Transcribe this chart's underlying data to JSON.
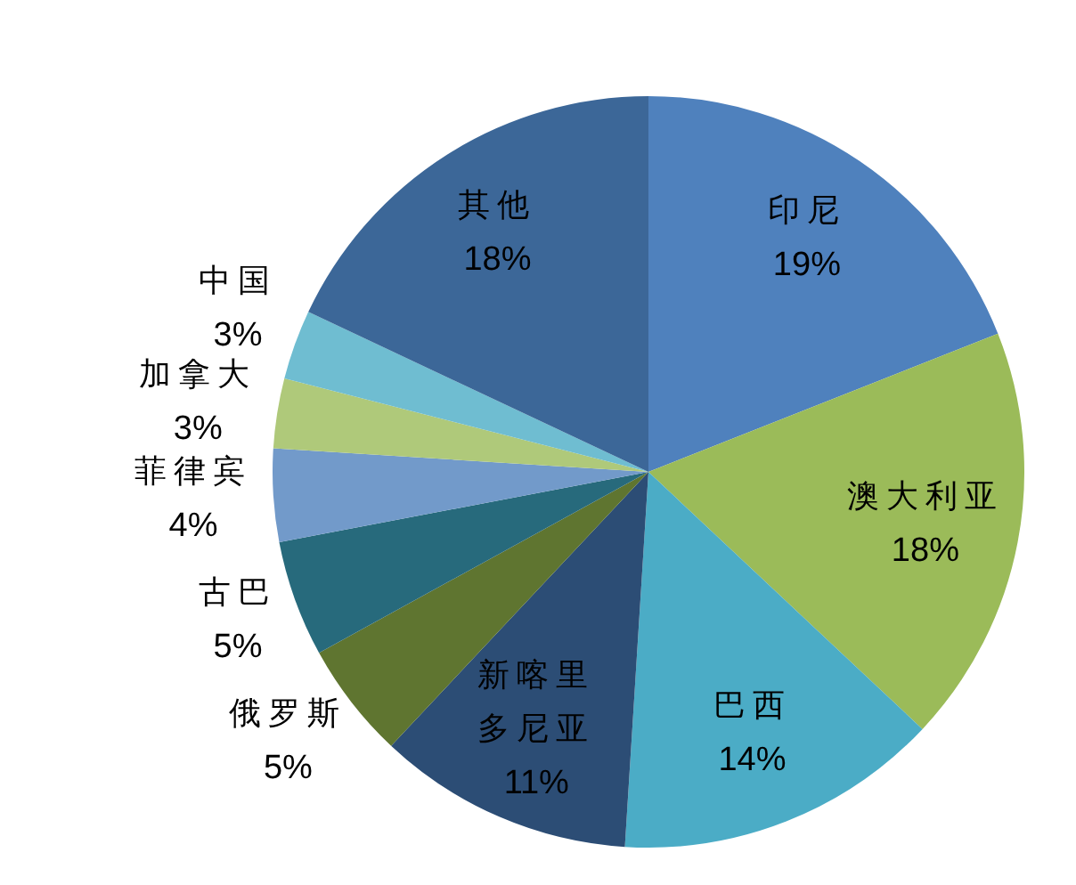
{
  "chart_data": {
    "type": "pie",
    "categories": [
      "印尼",
      "澳大利亚",
      "巴西",
      "新喀里多尼亚",
      "俄罗斯",
      "古巴",
      "菲律宾",
      "加拿大",
      "中国",
      "其他"
    ],
    "values": [
      19,
      18,
      14,
      11,
      5,
      5,
      4,
      3,
      3,
      18
    ],
    "colors": [
      "#4f81bd",
      "#9bbb59",
      "#4bacc6",
      "#2c4d75",
      "#5f7530",
      "#276a7c",
      "#729aca",
      "#afc97a",
      "#6fbdd1",
      "#3c6798"
    ],
    "value_labels": [
      "19%",
      "18%",
      "14%",
      "11%",
      "5%",
      "5%",
      "4%",
      "3%",
      "3%",
      "18%"
    ]
  }
}
